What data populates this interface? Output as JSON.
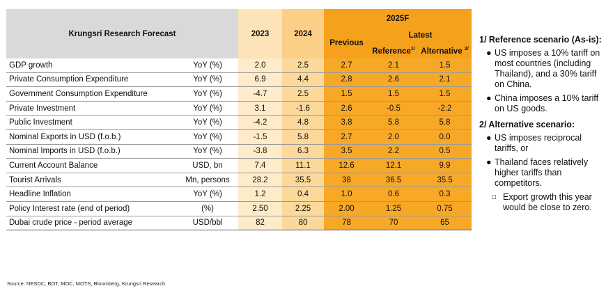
{
  "table": {
    "title": "Krungsri Research Forecast",
    "col_2023": "2023",
    "col_2024": "2024",
    "col_2025": "2025F",
    "col_previous": "Previous",
    "col_latest": "Latest",
    "col_reference": "Reference",
    "col_reference_sup": "1/",
    "col_alternative": "Alternative",
    "col_alternative_sup": "2/",
    "rows": [
      {
        "label": "GDP growth",
        "unit": "YoY (%)",
        "y2023": "2.0",
        "y2024": "2.5",
        "previous": "2.7",
        "reference": "2.1",
        "alternative": "1.5"
      },
      {
        "label": "Private Consumption Expenditure",
        "unit": "YoY (%)",
        "y2023": "6.9",
        "y2024": "4.4",
        "previous": "2.8",
        "reference": "2.6",
        "alternative": "2.1"
      },
      {
        "label": "Government Consumption Expenditure",
        "unit": "YoY (%)",
        "y2023": "-4.7",
        "y2024": "2.5",
        "previous": "1.5",
        "reference": "1.5",
        "alternative": "1.5"
      },
      {
        "label": "Private Investment",
        "unit": "YoY (%)",
        "y2023": "3.1",
        "y2024": "-1.6",
        "previous": "2.6",
        "reference": "-0.5",
        "alternative": "-2.2"
      },
      {
        "label": "Public Investment",
        "unit": "YoY (%)",
        "y2023": "-4.2",
        "y2024": "4.8",
        "previous": "3.8",
        "reference": "5.8",
        "alternative": "5.8"
      },
      {
        "label": "Nominal Exports in USD (f.o.b.)",
        "unit": "YoY (%)",
        "y2023": "-1.5",
        "y2024": "5.8",
        "previous": "2.7",
        "reference": "2.0",
        "alternative": "0.0"
      },
      {
        "label": "Nominal Imports in USD (f.o.b.)",
        "unit": "YoY (%)",
        "y2023": "-3.8",
        "y2024": "6.3",
        "previous": "3.5",
        "reference": "2.2",
        "alternative": "0.5"
      },
      {
        "label": "Current Account Balance",
        "unit": "USD, bn",
        "y2023": "7.4",
        "y2024": "11.1",
        "previous": "12.6",
        "reference": "12.1",
        "alternative": "9.9"
      },
      {
        "label": "Tourist Arrivals",
        "unit": "Mn, persons",
        "y2023": "28.2",
        "y2024": "35.5",
        "previous": "38",
        "reference": "36.5",
        "alternative": "35.5"
      },
      {
        "label": "Headline Inflation",
        "unit": "YoY (%)",
        "y2023": "1.2",
        "y2024": "0.4",
        "previous": "1.0",
        "reference": "0.6",
        "alternative": "0.3"
      },
      {
        "label": "Policy Interest rate (end of period)",
        "unit": "(%)",
        "y2023": "2.50",
        "y2024": "2.25",
        "previous": "2.00",
        "reference": "1.25",
        "alternative": "0.75"
      },
      {
        "label": "Dubai crude price - period average",
        "unit": "USD/bbl",
        "y2023": "82",
        "y2024": "80",
        "previous": "78",
        "reference": "70",
        "alternative": "65"
      }
    ]
  },
  "notes": {
    "reference_heading": "1/ Reference scenario (As-is):",
    "reference_items": [
      "US imposes a 10% tariff on most countries (including Thailand), and a 30% tariff on China.",
      "China imposes a 10% tariff on US goods."
    ],
    "alternative_heading": "2/  Alternative scenario:",
    "alternative_items": [
      "US imposes reciprocal tariffs, or",
      "Thailand faces relatively higher tariffs than competitors."
    ],
    "alternative_subitems": [
      "Export growth this year would be close to zero."
    ],
    "bullet": "●",
    "sub_bullet": "□"
  },
  "source": "Source: NESDC, BOT, MOC, MOTS, Bloomberg, Krungsri Research"
}
